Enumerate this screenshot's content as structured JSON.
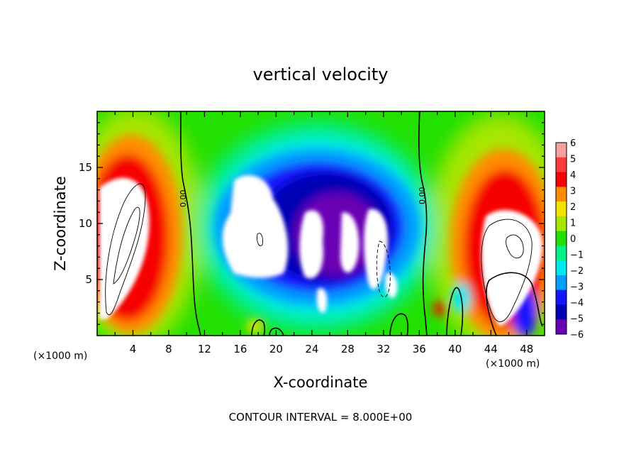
{
  "chart_data": {
    "type": "heatmap",
    "title": "vertical velocity",
    "xlabel": "X-coordinate",
    "ylabel": "Z-coordinate",
    "x_units": "(×1000 m)",
    "xlim": [
      0,
      50
    ],
    "ylim": [
      0,
      20
    ],
    "x_ticks": [
      4,
      8,
      12,
      16,
      20,
      24,
      28,
      32,
      36,
      40,
      44,
      48
    ],
    "y_ticks": [
      5,
      10,
      15
    ],
    "colorbar": {
      "ticks": [
        6,
        5,
        4,
        3,
        2,
        1,
        0,
        -1,
        -2,
        -3,
        -4,
        -5,
        -6
      ],
      "labels": [
        "6",
        "5",
        "4",
        "3",
        "2",
        "1",
        "0",
        "−1",
        "−2",
        "−3",
        "−4",
        "−5",
        "−6"
      ],
      "colors": [
        "#f7a0a0",
        "#ff3a3a",
        "#f60000",
        "#ff8c00",
        "#f2e200",
        "#a8e600",
        "#22e000",
        "#00f08a",
        "#00e8f0",
        "#009eff",
        "#1414ff",
        "#0000b4",
        "#6a00b4"
      ]
    },
    "contour_label": "0.00",
    "footnote": "CONTOUR INTERVAL = 8.000E+00"
  }
}
